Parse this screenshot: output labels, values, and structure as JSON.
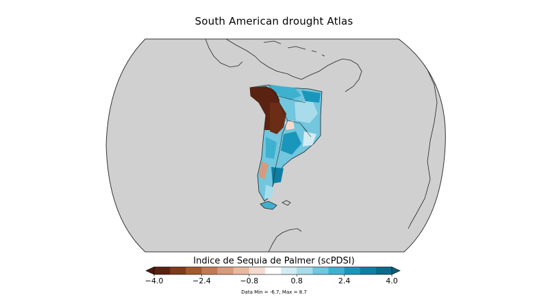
{
  "map": {
    "title": "South American drought Atlas"
  },
  "colorbar": {
    "title": "Indice de Sequia de Palmer (scPDSI)",
    "min": -4.0,
    "max": 4.0,
    "colors": [
      "#5a2210",
      "#7d3a1c",
      "#a4592f",
      "#c27a55",
      "#d69a7c",
      "#e6b9a1",
      "#f4dbcf",
      "#ffffff",
      "#d3ecf3",
      "#a8dcea",
      "#72c6dd",
      "#3fb1d0",
      "#1a96bb",
      "#0f7ea3",
      "#0d6a8a"
    ],
    "under_color": "#4a1a0a",
    "over_color": "#0b5f7e",
    "tick_values": [
      -4.0,
      -2.4,
      -0.8,
      0.8,
      2.4,
      4.0
    ],
    "tick_labels": [
      "−4.0",
      "−2.4",
      "−0.8",
      "0.8",
      "2.4",
      "4.0"
    ]
  },
  "data_range": "Data Min = -6.7, Max = 8.7"
}
